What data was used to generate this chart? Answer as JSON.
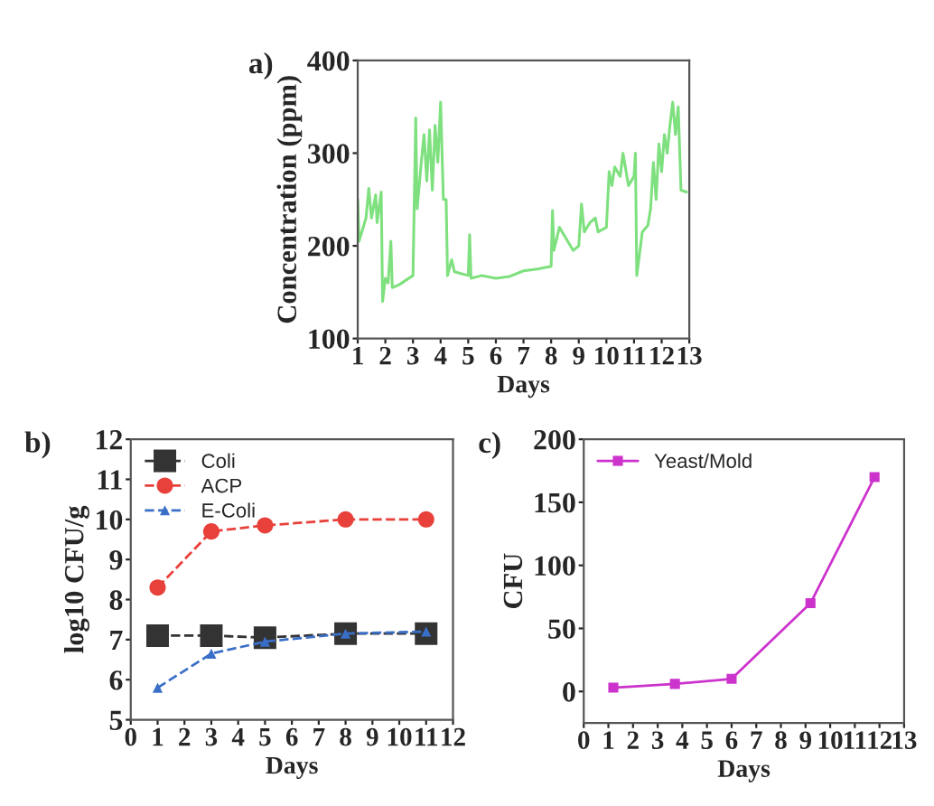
{
  "chart_data": [
    {
      "type": "line",
      "title": "a)",
      "xlabel": "Days",
      "ylabel": "Concentration (ppm)",
      "xlim": [
        1,
        13
      ],
      "xticks": [
        1,
        2,
        3,
        4,
        5,
        6,
        7,
        8,
        9,
        10,
        11,
        12,
        13
      ],
      "ylim": [
        100,
        400
      ],
      "yticks": [
        100,
        200,
        300,
        400
      ],
      "grid": false,
      "legend": false,
      "marker": "none",
      "line_style": "solid",
      "series": [
        {
          "color": "#7ee07e",
          "x": [
            1.0,
            1.05,
            1.3,
            1.4,
            1.5,
            1.65,
            1.7,
            1.85,
            1.9,
            2.0,
            2.1,
            2.2,
            2.25,
            2.5,
            3.0,
            3.1,
            3.15,
            3.3,
            3.4,
            3.5,
            3.6,
            3.7,
            3.8,
            3.9,
            4.0,
            4.1,
            4.2,
            4.25,
            4.4,
            4.5,
            5.0,
            5.05,
            5.1,
            5.5,
            6.0,
            6.5,
            7.0,
            7.5,
            8.0,
            8.05,
            8.1,
            8.3,
            8.6,
            8.8,
            9.0,
            9.1,
            9.2,
            9.4,
            9.6,
            9.7,
            10.0,
            10.1,
            10.2,
            10.3,
            10.5,
            10.6,
            10.8,
            11.0,
            11.05,
            11.1,
            11.3,
            11.5,
            11.6,
            11.7,
            11.8,
            11.9,
            12.0,
            12.1,
            12.2,
            12.3,
            12.4,
            12.5,
            12.6,
            12.7,
            12.9
          ],
          "values": [
            250,
            205,
            230,
            262,
            230,
            255,
            225,
            258,
            140,
            165,
            160,
            205,
            155,
            158,
            168,
            338,
            240,
            290,
            320,
            270,
            325,
            260,
            330,
            290,
            355,
            250,
            250,
            168,
            185,
            172,
            168,
            212,
            165,
            168,
            165,
            167,
            173,
            175,
            178,
            238,
            195,
            220,
            205,
            195,
            200,
            245,
            215,
            225,
            230,
            215,
            220,
            280,
            265,
            285,
            275,
            300,
            265,
            275,
            300,
            168,
            215,
            222,
            240,
            290,
            250,
            310,
            280,
            320,
            300,
            330,
            355,
            320,
            350,
            260,
            258
          ]
        }
      ]
    },
    {
      "type": "line",
      "title": "b)",
      "xlabel": "Days",
      "ylabel": "log10 CFU/g",
      "xlim": [
        0,
        12
      ],
      "xticks": [
        0,
        1,
        2,
        3,
        4,
        5,
        6,
        7,
        8,
        9,
        10,
        11,
        12
      ],
      "ylim": [
        5,
        12
      ],
      "yticks": [
        5,
        6,
        7,
        8,
        9,
        10,
        11,
        12
      ],
      "grid": false,
      "legend": "top left",
      "line_style": "dashed",
      "x": [
        1,
        3,
        5,
        8,
        11
      ],
      "series": [
        {
          "name": "Coli",
          "color": "#333333",
          "marker": "square",
          "values": [
            7.1,
            7.1,
            7.05,
            7.15,
            7.15
          ]
        },
        {
          "name": "ACP",
          "color": "#e8403a",
          "marker": "circle",
          "values": [
            8.3,
            9.7,
            9.85,
            10.0,
            10.0
          ]
        },
        {
          "name": "E-Coli",
          "color": "#3a6fc8",
          "marker": "triangle",
          "values": [
            5.8,
            6.65,
            6.95,
            7.15,
            7.2
          ]
        }
      ]
    },
    {
      "type": "line",
      "title": "c)",
      "xlabel": "Days",
      "ylabel": "CFU",
      "xlim": [
        0,
        13
      ],
      "xticks": [
        0,
        1,
        2,
        3,
        4,
        5,
        6,
        7,
        8,
        9,
        10,
        11,
        12,
        13
      ],
      "ylim": [
        -25,
        200
      ],
      "yticks": [
        0,
        50,
        100,
        150,
        200
      ],
      "grid": false,
      "legend": "top left",
      "line_style": "solid",
      "marker": "square",
      "x": [
        1.2,
        3.7,
        6.0,
        9.2,
        11.8
      ],
      "series": [
        {
          "name": "Yeast/Mold",
          "color": "#cc33cc",
          "values": [
            3,
            6,
            10,
            70,
            170
          ]
        }
      ]
    }
  ]
}
